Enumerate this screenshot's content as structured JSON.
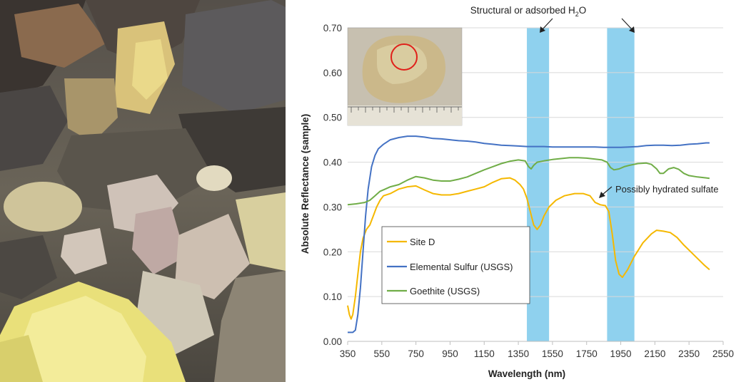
{
  "chart_data": {
    "type": "line",
    "xlabel": "Wavelength (nm)",
    "ylabel": "Absolute Reflectance (sample)",
    "xlim": [
      350,
      2550
    ],
    "ylim": [
      0,
      0.7
    ],
    "xticks": [
      350,
      550,
      750,
      950,
      1150,
      1350,
      1550,
      1750,
      1950,
      2150,
      2350,
      2550
    ],
    "yticks": [
      0.0,
      0.1,
      0.2,
      0.3,
      0.4,
      0.5,
      0.6,
      0.7
    ],
    "ytick_labels": [
      "0.00",
      "0.10",
      "0.20",
      "0.30",
      "0.40",
      "0.50",
      "0.60",
      "0.70"
    ],
    "grid": "horizontal",
    "legend_position": "lower-left",
    "bands": [
      {
        "x0": 1400,
        "x1": 1530,
        "color": "#8fd1ee"
      },
      {
        "x0": 1870,
        "x1": 2030,
        "color": "#8fd1ee"
      }
    ],
    "band_annotation": {
      "text": "Structural or adsorbed H",
      "sub": "2",
      "tail": "O"
    },
    "series": [
      {
        "name": "Site D",
        "color": "#f5b800",
        "points": [
          [
            350,
            0.08
          ],
          [
            360,
            0.06
          ],
          [
            370,
            0.05
          ],
          [
            380,
            0.06
          ],
          [
            395,
            0.1
          ],
          [
            410,
            0.15
          ],
          [
            425,
            0.2
          ],
          [
            440,
            0.23
          ],
          [
            460,
            0.25
          ],
          [
            480,
            0.26
          ],
          [
            500,
            0.28
          ],
          [
            520,
            0.3
          ],
          [
            540,
            0.315
          ],
          [
            560,
            0.325
          ],
          [
            600,
            0.33
          ],
          [
            650,
            0.34
          ],
          [
            700,
            0.345
          ],
          [
            750,
            0.347
          ],
          [
            800,
            0.338
          ],
          [
            850,
            0.33
          ],
          [
            900,
            0.327
          ],
          [
            950,
            0.327
          ],
          [
            1000,
            0.33
          ],
          [
            1050,
            0.335
          ],
          [
            1100,
            0.34
          ],
          [
            1150,
            0.345
          ],
          [
            1200,
            0.355
          ],
          [
            1250,
            0.363
          ],
          [
            1300,
            0.365
          ],
          [
            1330,
            0.36
          ],
          [
            1360,
            0.35
          ],
          [
            1380,
            0.34
          ],
          [
            1400,
            0.32
          ],
          [
            1420,
            0.29
          ],
          [
            1440,
            0.26
          ],
          [
            1460,
            0.25
          ],
          [
            1480,
            0.26
          ],
          [
            1500,
            0.28
          ],
          [
            1530,
            0.3
          ],
          [
            1570,
            0.315
          ],
          [
            1620,
            0.325
          ],
          [
            1680,
            0.33
          ],
          [
            1730,
            0.33
          ],
          [
            1770,
            0.325
          ],
          [
            1800,
            0.31
          ],
          [
            1830,
            0.305
          ],
          [
            1860,
            0.303
          ],
          [
            1880,
            0.29
          ],
          [
            1900,
            0.24
          ],
          [
            1920,
            0.18
          ],
          [
            1940,
            0.15
          ],
          [
            1960,
            0.143
          ],
          [
            1990,
            0.16
          ],
          [
            2030,
            0.19
          ],
          [
            2080,
            0.22
          ],
          [
            2130,
            0.24
          ],
          [
            2160,
            0.248
          ],
          [
            2200,
            0.246
          ],
          [
            2240,
            0.243
          ],
          [
            2280,
            0.232
          ],
          [
            2320,
            0.215
          ],
          [
            2360,
            0.2
          ],
          [
            2400,
            0.185
          ],
          [
            2440,
            0.17
          ],
          [
            2470,
            0.16
          ]
        ]
      },
      {
        "name": "Elemental Sulfur (USGS)",
        "color": "#4472c4",
        "points": [
          [
            350,
            0.02
          ],
          [
            380,
            0.02
          ],
          [
            395,
            0.025
          ],
          [
            410,
            0.06
          ],
          [
            425,
            0.12
          ],
          [
            440,
            0.2
          ],
          [
            455,
            0.28
          ],
          [
            470,
            0.34
          ],
          [
            490,
            0.39
          ],
          [
            510,
            0.415
          ],
          [
            530,
            0.43
          ],
          [
            560,
            0.44
          ],
          [
            600,
            0.45
          ],
          [
            650,
            0.455
          ],
          [
            700,
            0.458
          ],
          [
            750,
            0.458
          ],
          [
            800,
            0.456
          ],
          [
            850,
            0.453
          ],
          [
            900,
            0.452
          ],
          [
            950,
            0.45
          ],
          [
            1000,
            0.448
          ],
          [
            1050,
            0.447
          ],
          [
            1100,
            0.445
          ],
          [
            1150,
            0.442
          ],
          [
            1200,
            0.44
          ],
          [
            1250,
            0.438
          ],
          [
            1300,
            0.437
          ],
          [
            1350,
            0.436
          ],
          [
            1400,
            0.435
          ],
          [
            1450,
            0.435
          ],
          [
            1500,
            0.435
          ],
          [
            1550,
            0.434
          ],
          [
            1600,
            0.434
          ],
          [
            1650,
            0.434
          ],
          [
            1700,
            0.434
          ],
          [
            1750,
            0.434
          ],
          [
            1800,
            0.434
          ],
          [
            1850,
            0.433
          ],
          [
            1900,
            0.433
          ],
          [
            1950,
            0.433
          ],
          [
            2000,
            0.434
          ],
          [
            2050,
            0.435
          ],
          [
            2100,
            0.437
          ],
          [
            2150,
            0.438
          ],
          [
            2200,
            0.438
          ],
          [
            2250,
            0.437
          ],
          [
            2300,
            0.438
          ],
          [
            2350,
            0.44
          ],
          [
            2400,
            0.441
          ],
          [
            2450,
            0.443
          ],
          [
            2470,
            0.443
          ]
        ]
      },
      {
        "name": "Goethite (USGS)",
        "color": "#70ad47",
        "points": [
          [
            350,
            0.305
          ],
          [
            400,
            0.307
          ],
          [
            450,
            0.31
          ],
          [
            480,
            0.315
          ],
          [
            510,
            0.325
          ],
          [
            540,
            0.335
          ],
          [
            570,
            0.34
          ],
          [
            600,
            0.345
          ],
          [
            650,
            0.35
          ],
          [
            700,
            0.36
          ],
          [
            750,
            0.368
          ],
          [
            800,
            0.365
          ],
          [
            850,
            0.36
          ],
          [
            900,
            0.358
          ],
          [
            950,
            0.358
          ],
          [
            1000,
            0.362
          ],
          [
            1050,
            0.367
          ],
          [
            1100,
            0.375
          ],
          [
            1150,
            0.383
          ],
          [
            1200,
            0.39
          ],
          [
            1250,
            0.397
          ],
          [
            1300,
            0.402
          ],
          [
            1350,
            0.405
          ],
          [
            1390,
            0.403
          ],
          [
            1410,
            0.39
          ],
          [
            1425,
            0.385
          ],
          [
            1440,
            0.393
          ],
          [
            1460,
            0.4
          ],
          [
            1500,
            0.403
          ],
          [
            1550,
            0.406
          ],
          [
            1600,
            0.408
          ],
          [
            1650,
            0.41
          ],
          [
            1700,
            0.41
          ],
          [
            1750,
            0.409
          ],
          [
            1800,
            0.407
          ],
          [
            1840,
            0.405
          ],
          [
            1870,
            0.4
          ],
          [
            1890,
            0.388
          ],
          [
            1910,
            0.383
          ],
          [
            1940,
            0.385
          ],
          [
            1970,
            0.39
          ],
          [
            2000,
            0.393
          ],
          [
            2050,
            0.397
          ],
          [
            2100,
            0.398
          ],
          [
            2130,
            0.395
          ],
          [
            2160,
            0.385
          ],
          [
            2180,
            0.375
          ],
          [
            2200,
            0.375
          ],
          [
            2230,
            0.385
          ],
          [
            2260,
            0.388
          ],
          [
            2290,
            0.384
          ],
          [
            2320,
            0.375
          ],
          [
            2350,
            0.37
          ],
          [
            2400,
            0.367
          ],
          [
            2450,
            0.365
          ],
          [
            2470,
            0.364
          ]
        ]
      }
    ],
    "annotations": [
      {
        "text": "Possibly hydrated sulfate",
        "x": 1890,
        "y": 0.337
      }
    ]
  }
}
